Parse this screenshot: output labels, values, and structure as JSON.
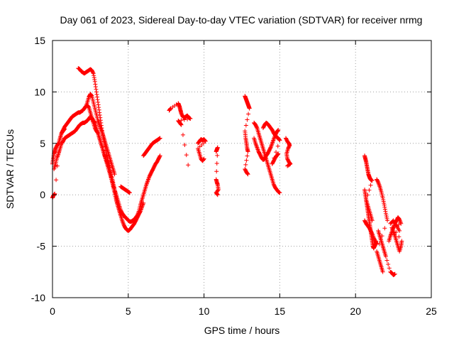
{
  "chart_data": {
    "type": "scatter",
    "title": "Day 061 of 2023, Sidereal Day-to-day VTEC variation (SDTVAR) for receiver nrmg",
    "xlabel": "GPS time / hours",
    "ylabel": "SDTVAR / TECUs",
    "xlim": [
      0,
      25
    ],
    "ylim": [
      -10,
      15
    ],
    "xticks": [
      "0",
      "5",
      "10",
      "15",
      "20",
      "25"
    ],
    "yticks": [
      "-10",
      "-5",
      "0",
      "5",
      "10",
      "15"
    ],
    "grid": true,
    "marker": "plus",
    "color": "#ff0000",
    "series": [
      {
        "name": "s1",
        "x": [
          0.0,
          0.05,
          0.1,
          0.15,
          0.2,
          0.3,
          0.4,
          0.5,
          0.6,
          0.7,
          0.8,
          0.9,
          1.0,
          1.1,
          1.2,
          1.3,
          1.4,
          1.5,
          1.6,
          1.7,
          1.8,
          1.9,
          2.0,
          2.1,
          2.2,
          2.3,
          2.4,
          2.5,
          2.6,
          2.7,
          2.8,
          2.9,
          3.0,
          3.1,
          3.2,
          3.3,
          3.4,
          3.5,
          3.6,
          3.7,
          3.8,
          3.9,
          4.0,
          4.1,
          4.2,
          4.3,
          4.4,
          4.5,
          4.6,
          4.7,
          4.8,
          4.9,
          5.0,
          5.1,
          5.2,
          5.3,
          5.4,
          5.5,
          5.6,
          5.7,
          5.8,
          5.9,
          6.0,
          6.1,
          6.2,
          6.3,
          6.4,
          6.5,
          6.6,
          6.7,
          6.8,
          6.9,
          7.0,
          7.1
        ],
        "y": [
          3.0,
          3.5,
          4.0,
          4.2,
          4.5,
          4.8,
          5.0,
          5.5,
          6.0,
          6.3,
          6.6,
          6.8,
          7.0,
          7.2,
          7.4,
          7.6,
          7.7,
          7.8,
          7.9,
          8.0,
          8.0,
          8.1,
          8.2,
          8.4,
          8.6,
          8.7,
          8.5,
          8.0,
          7.5,
          7.2,
          7.0,
          6.5,
          6.0,
          5.5,
          5.0,
          4.5,
          4.0,
          3.5,
          3.0,
          2.5,
          2.0,
          1.5,
          1.0,
          0.5,
          0.0,
          -0.5,
          -1.0,
          -1.5,
          -1.8,
          -2.0,
          -2.2,
          -2.3,
          -2.5,
          -2.6,
          -2.6,
          -2.5,
          -2.4,
          -2.2,
          -2.0,
          -1.6,
          -1.0,
          -0.5,
          0.0,
          0.5,
          1.0,
          1.4,
          1.8,
          2.1,
          2.4,
          2.7,
          3.0,
          3.2,
          3.5,
          3.8
        ]
      },
      {
        "name": "s2",
        "x": [
          0.1,
          0.2,
          0.3,
          0.4,
          0.5,
          0.6,
          0.7,
          0.8,
          0.9,
          1.0,
          1.1,
          1.2,
          1.3,
          1.4,
          1.5,
          1.6,
          1.7,
          1.8,
          1.9,
          2.0,
          2.1,
          2.2,
          2.3,
          2.4,
          2.5,
          2.6,
          2.7,
          2.8,
          2.9,
          3.0,
          3.1,
          3.2,
          3.3,
          3.4,
          3.5,
          3.6,
          3.7,
          3.8,
          3.9,
          4.0,
          4.1,
          4.2,
          4.3,
          4.4,
          4.5,
          4.6,
          4.7,
          4.8,
          4.9,
          5.0,
          5.1,
          5.2,
          5.3,
          5.4,
          5.5,
          5.6,
          5.7,
          5.8,
          5.9,
          6.0
        ],
        "y": [
          2.5,
          3.0,
          3.6,
          4.0,
          4.5,
          5.0,
          5.2,
          5.5,
          5.6,
          5.7,
          5.8,
          5.9,
          6.0,
          6.1,
          6.2,
          6.4,
          6.6,
          6.8,
          6.9,
          7.0,
          7.0,
          7.1,
          7.2,
          7.4,
          7.6,
          7.4,
          7.0,
          6.5,
          6.2,
          6.0,
          5.5,
          5.0,
          4.5,
          4.0,
          3.6,
          3.2,
          2.8,
          2.2,
          1.5,
          0.8,
          0.2,
          -0.5,
          -1.0,
          -1.5,
          -2.0,
          -2.5,
          -2.9,
          -3.2,
          -3.4,
          -3.5,
          -3.4,
          -3.2,
          -3.0,
          -2.8,
          -2.5,
          -2.2,
          -1.9,
          -1.6,
          -1.2,
          -0.8
        ]
      },
      {
        "name": "s3",
        "x": [
          1.7,
          1.8,
          1.9,
          2.0,
          2.1,
          2.2,
          2.3,
          2.4,
          2.5,
          2.6,
          2.7,
          2.8,
          2.9,
          3.0,
          3.1,
          3.2,
          3.3,
          3.4,
          3.5,
          3.6,
          3.7,
          3.8,
          3.9,
          4.0,
          4.1,
          4.2,
          4.3,
          4.4,
          4.5
        ],
        "y": [
          12.3,
          12.2,
          12.0,
          11.9,
          11.8,
          11.9,
          12.0,
          12.1,
          12.2,
          12.1,
          11.8,
          11.0,
          10.0,
          9.0,
          8.0,
          7.0,
          6.0,
          5.2,
          4.5,
          3.8,
          3.2,
          2.5,
          1.8,
          1.2,
          0.5,
          -0.2,
          -1.0,
          -1.5,
          -2.0
        ]
      },
      {
        "name": "s4",
        "x": [
          2.2,
          2.3,
          2.4,
          2.5,
          2.6,
          2.7,
          2.8,
          2.9,
          3.0,
          3.1,
          3.2,
          3.3,
          3.4,
          3.5,
          3.6,
          3.7,
          3.8,
          3.9,
          4.0,
          4.1
        ],
        "y": [
          8.5,
          9.0,
          9.5,
          9.8,
          9.6,
          9.0,
          8.4,
          7.8,
          7.2,
          6.8,
          6.4,
          6.0,
          5.5,
          5.0,
          4.5,
          4.0,
          3.5,
          3.0,
          2.5,
          2.0
        ]
      },
      {
        "name": "s5",
        "x": [
          0.0,
          0.05,
          0.1,
          0.15,
          0.5,
          0.6,
          0.7,
          0.8
        ],
        "y": [
          -0.3,
          -0.1,
          0.0,
          0.1,
          5.5,
          6.0,
          6.2,
          6.4
        ]
      },
      {
        "name": "s6",
        "x": [
          4.5,
          4.6,
          4.7,
          4.8,
          4.9,
          5.0,
          5.1
        ],
        "y": [
          0.8,
          0.7,
          0.6,
          0.5,
          0.4,
          0.3,
          0.2
        ]
      },
      {
        "name": "s7",
        "x": [
          6.0,
          6.1,
          6.2,
          6.3,
          6.4,
          6.5,
          6.6,
          6.7,
          6.8,
          6.9,
          7.0,
          7.1
        ],
        "y": [
          3.8,
          4.0,
          4.2,
          4.4,
          4.6,
          4.8,
          5.0,
          5.1,
          5.2,
          5.3,
          5.4,
          5.5
        ]
      },
      {
        "name": "s8",
        "x": [
          7.7,
          7.8,
          8.3,
          8.35,
          8.4,
          8.45,
          8.5,
          8.6,
          8.7,
          8.8,
          8.9,
          9.0,
          9.1,
          8.3,
          8.4,
          8.5,
          8.95
        ],
        "y": [
          8.2,
          8.4,
          8.9,
          8.7,
          8.5,
          8.2,
          7.9,
          7.6,
          7.5,
          7.6,
          7.7,
          7.5,
          7.4,
          7.2,
          7.0,
          6.8,
          2.9
        ]
      },
      {
        "name": "s9",
        "x": [
          9.6,
          9.7,
          9.8,
          9.9,
          10.0,
          10.1,
          9.6,
          9.7,
          9.8,
          9.9,
          10.0
        ],
        "y": [
          5.0,
          5.2,
          5.4,
          5.3,
          5.4,
          5.2,
          4.5,
          4.0,
          3.5,
          3.3,
          3.5
        ]
      },
      {
        "name": "s10",
        "x": [
          10.8,
          10.85,
          10.9,
          10.8,
          10.85,
          10.9,
          10.95,
          10.8,
          10.9
        ],
        "y": [
          4.2,
          4.4,
          4.6,
          1.5,
          1.2,
          1.0,
          0.5,
          0.2,
          0.0
        ]
      },
      {
        "name": "s11",
        "x": [
          12.7,
          12.75,
          12.8,
          12.85,
          12.9,
          12.95,
          13.0,
          12.7,
          12.75,
          12.8,
          12.85,
          12.9,
          12.7,
          12.8,
          12.9
        ],
        "y": [
          9.6,
          9.4,
          9.2,
          9.0,
          8.8,
          8.6,
          8.4,
          6.2,
          5.5,
          5.0,
          4.5,
          4.2,
          2.5,
          2.2,
          2.0
        ]
      },
      {
        "name": "s12",
        "x": [
          13.3,
          13.4,
          13.5,
          13.6,
          13.7,
          13.8,
          13.9,
          14.0,
          14.1,
          14.2,
          14.3,
          14.4,
          14.5,
          14.6,
          14.7,
          14.8,
          14.9,
          15.0
        ],
        "y": [
          7.0,
          6.8,
          6.5,
          6.0,
          5.5,
          5.0,
          4.5,
          4.0,
          3.5,
          3.0,
          2.5,
          2.0,
          1.5,
          1.0,
          0.7,
          0.5,
          0.3,
          0.2
        ]
      },
      {
        "name": "s13",
        "x": [
          13.3,
          13.4,
          13.5,
          13.6,
          13.7,
          13.8,
          13.9,
          14.0,
          14.1,
          14.2,
          14.3,
          14.4,
          14.5,
          14.6,
          14.7,
          14.8,
          14.9
        ],
        "y": [
          5.5,
          5.0,
          4.6,
          4.2,
          3.9,
          3.6,
          3.4,
          3.5,
          3.8,
          4.0,
          4.3,
          4.6,
          5.0,
          5.4,
          5.8,
          6.1,
          6.3
        ]
      },
      {
        "name": "s14",
        "x": [
          13.9,
          14.0,
          14.1,
          14.2,
          14.3,
          14.4,
          14.5,
          14.6,
          14.7,
          14.8,
          14.9,
          15.0,
          14.5,
          14.6,
          14.7,
          14.8,
          14.9
        ],
        "y": [
          6.5,
          6.8,
          7.0,
          6.9,
          6.7,
          6.5,
          6.3,
          6.0,
          5.8,
          5.6,
          5.5,
          5.3,
          3.0,
          3.3,
          3.6,
          3.8,
          4.0
        ]
      },
      {
        "name": "s15",
        "x": [
          15.4,
          15.5,
          15.6,
          15.65,
          15.55,
          15.45,
          15.5,
          15.6,
          15.7,
          15.5
        ],
        "y": [
          5.5,
          5.2,
          5.0,
          4.8,
          4.5,
          4.0,
          3.5,
          3.2,
          3.0,
          2.8
        ]
      },
      {
        "name": "s16",
        "x": [
          20.6,
          20.65,
          20.7,
          20.75,
          20.8,
          20.85,
          20.9,
          20.95,
          21.0,
          21.05,
          21.1,
          20.7,
          20.8,
          20.9,
          21.0,
          21.1
        ],
        "y": [
          3.8,
          3.5,
          3.2,
          2.8,
          2.4,
          2.0,
          1.8,
          1.6,
          1.5,
          1.4,
          1.4,
          -0.5,
          -1.0,
          -1.5,
          -2.0,
          -2.5
        ]
      },
      {
        "name": "s17",
        "x": [
          20.6,
          20.65,
          20.7,
          20.75,
          20.8,
          20.85,
          20.9,
          20.95,
          21.0,
          21.05,
          21.1,
          21.15,
          21.2,
          21.25,
          21.3,
          21.35
        ],
        "y": [
          0.5,
          0.0,
          -0.5,
          -1.0,
          -1.5,
          -2.0,
          -2.5,
          -3.0,
          -3.5,
          -4.0,
          -4.5,
          -5.0,
          -5.2,
          -5.0,
          -4.8,
          -4.5
        ]
      },
      {
        "name": "s18",
        "x": [
          20.6,
          20.7,
          20.8,
          20.9,
          21.0,
          21.1,
          21.2,
          21.3,
          21.4
        ],
        "y": [
          -2.5,
          -2.8,
          -3.0,
          -3.2,
          -3.5,
          -3.8,
          -4.2,
          -4.5,
          -4.8
        ]
      },
      {
        "name": "s19",
        "x": [
          21.4,
          21.5,
          21.6,
          21.7,
          21.8,
          21.9,
          22.0,
          22.1,
          21.4,
          21.5,
          21.6,
          21.7,
          21.8
        ],
        "y": [
          1.5,
          1.2,
          0.8,
          0.3,
          -0.3,
          -1.0,
          -1.8,
          -2.5,
          -5.5,
          -6.0,
          -6.5,
          -7.0,
          -7.5
        ]
      },
      {
        "name": "s20",
        "x": [
          21.5,
          21.6,
          21.7,
          21.8,
          21.9,
          22.0,
          22.3,
          22.4,
          22.5,
          22.6
        ],
        "y": [
          -3.5,
          -4.0,
          -4.5,
          -5.0,
          -5.5,
          -6.0,
          -7.5,
          -7.6,
          -7.8,
          -7.7
        ]
      },
      {
        "name": "s21",
        "x": [
          22.2,
          22.3,
          22.4,
          22.5,
          22.6,
          22.7,
          22.8,
          22.9,
          23.0,
          22.4,
          22.5,
          22.6,
          22.7,
          22.8,
          22.9,
          23.0,
          23.05,
          22.3,
          22.5,
          22.7,
          22.9
        ],
        "y": [
          -4.5,
          -4.0,
          -3.6,
          -3.2,
          -2.8,
          -2.5,
          -2.2,
          -2.4,
          -2.8,
          -3.2,
          -3.6,
          -4.0,
          -4.5,
          -5.0,
          -5.5,
          -5.0,
          -4.5,
          -2.8,
          -2.5,
          -3.0,
          -3.5
        ]
      }
    ]
  }
}
